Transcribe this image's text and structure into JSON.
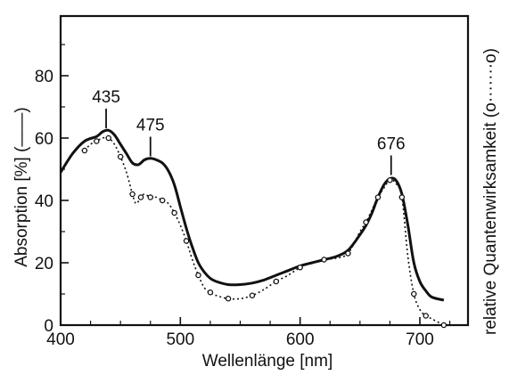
{
  "chart_data": {
    "type": "line",
    "xlabel": "Wellenlänge [nm]",
    "ylabel_left": "Absorption [%] (——)",
    "ylabel_right": "relative Quantenwirksamkeit (o·······o)",
    "xlim": [
      400,
      730
    ],
    "ylim": [
      0,
      100
    ],
    "x_ticks": [
      400,
      500,
      600,
      700
    ],
    "y_ticks": [
      0,
      20,
      40,
      60,
      80
    ],
    "grid": false,
    "annotations": [
      {
        "text": "435",
        "x": 438,
        "y": 62
      },
      {
        "text": "475",
        "x": 475,
        "y": 53
      },
      {
        "text": "676",
        "x": 676,
        "y": 47
      }
    ],
    "series": [
      {
        "name": "Absorption",
        "style": "solid",
        "color": "#111111",
        "points": [
          [
            400,
            49
          ],
          [
            410,
            55
          ],
          [
            420,
            59
          ],
          [
            430,
            60.5
          ],
          [
            435,
            62
          ],
          [
            440,
            62.5
          ],
          [
            445,
            61
          ],
          [
            450,
            58
          ],
          [
            455,
            55
          ],
          [
            460,
            52
          ],
          [
            465,
            51.5
          ],
          [
            470,
            53
          ],
          [
            475,
            53.5
          ],
          [
            480,
            53
          ],
          [
            485,
            52
          ],
          [
            490,
            49.5
          ],
          [
            495,
            45
          ],
          [
            500,
            38
          ],
          [
            505,
            31
          ],
          [
            510,
            25
          ],
          [
            515,
            20
          ],
          [
            520,
            17
          ],
          [
            525,
            15
          ],
          [
            530,
            14
          ],
          [
            540,
            13
          ],
          [
            550,
            13
          ],
          [
            560,
            13.5
          ],
          [
            570,
            14.5
          ],
          [
            580,
            16
          ],
          [
            590,
            17.5
          ],
          [
            600,
            19
          ],
          [
            610,
            20
          ],
          [
            620,
            21
          ],
          [
            630,
            22
          ],
          [
            640,
            24
          ],
          [
            650,
            29
          ],
          [
            655,
            32
          ],
          [
            660,
            36
          ],
          [
            665,
            41
          ],
          [
            670,
            45
          ],
          [
            675,
            47
          ],
          [
            680,
            46.5
          ],
          [
            685,
            42
          ],
          [
            690,
            32
          ],
          [
            695,
            20
          ],
          [
            700,
            14
          ],
          [
            705,
            11
          ],
          [
            710,
            9
          ],
          [
            720,
            8
          ]
        ]
      },
      {
        "name": "relative Quantenwirksamkeit",
        "style": "dotted-circles",
        "color": "#111111",
        "points": [
          [
            420,
            56
          ],
          [
            425,
            58
          ],
          [
            430,
            59
          ],
          [
            435,
            60
          ],
          [
            440,
            60
          ],
          [
            445,
            58
          ],
          [
            450,
            54
          ],
          [
            455,
            49
          ],
          [
            460,
            42
          ],
          [
            463,
            39
          ],
          [
            467,
            41
          ],
          [
            470,
            42
          ],
          [
            475,
            41
          ],
          [
            480,
            41
          ],
          [
            485,
            40
          ],
          [
            490,
            39
          ],
          [
            495,
            36
          ],
          [
            500,
            32
          ],
          [
            505,
            27
          ],
          [
            510,
            21
          ],
          [
            515,
            16
          ],
          [
            520,
            12
          ],
          [
            525,
            10.5
          ],
          [
            530,
            9.5
          ],
          [
            540,
            8.5
          ],
          [
            550,
            8.5
          ],
          [
            560,
            9.5
          ],
          [
            570,
            11.5
          ],
          [
            580,
            14
          ],
          [
            590,
            16
          ],
          [
            600,
            18.5
          ],
          [
            610,
            20
          ],
          [
            620,
            21
          ],
          [
            630,
            21.5
          ],
          [
            640,
            23
          ],
          [
            650,
            30
          ],
          [
            655,
            33
          ],
          [
            660,
            37
          ],
          [
            665,
            41
          ],
          [
            670,
            44
          ],
          [
            675,
            46.5
          ],
          [
            680,
            45.5
          ],
          [
            685,
            41
          ],
          [
            690,
            22
          ],
          [
            695,
            10
          ],
          [
            700,
            5
          ],
          [
            705,
            3
          ],
          [
            710,
            2
          ],
          [
            720,
            0
          ]
        ]
      }
    ]
  }
}
